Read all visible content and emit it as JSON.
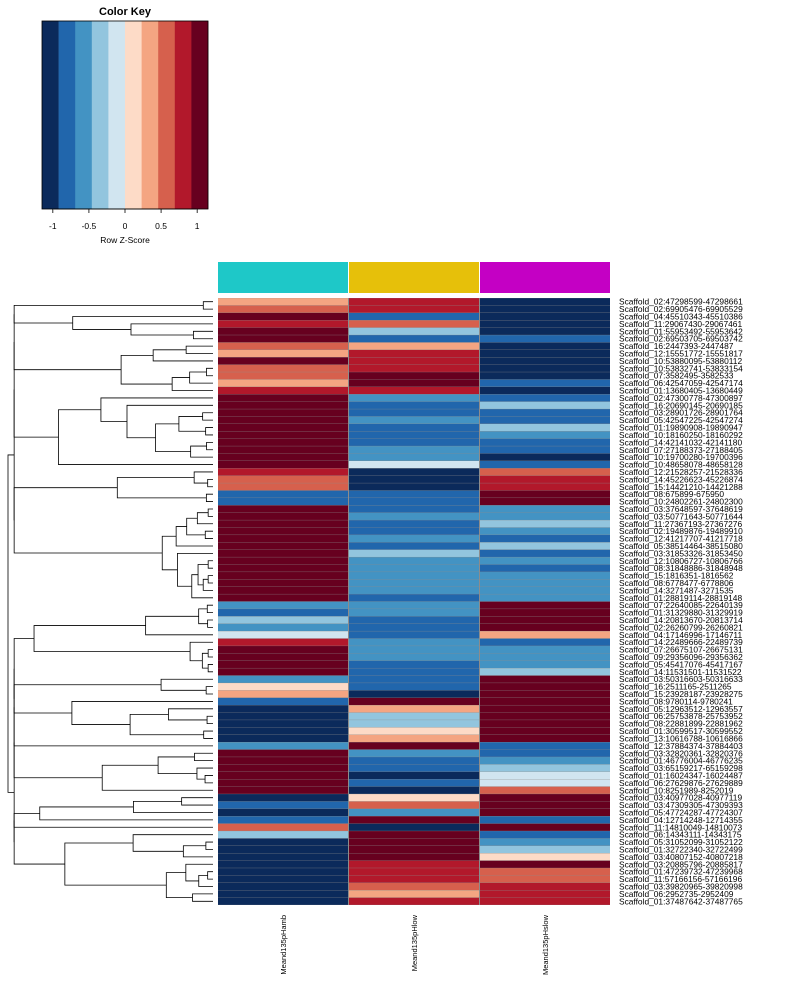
{
  "chart_data": {
    "type": "heatmap",
    "color_key": {
      "title": "Color Key",
      "xlabel": "Row Z-Score",
      "ticks": [
        "-1",
        "-0.5",
        "0",
        "0.5",
        "1"
      ],
      "tick_values": [
        -1,
        -0.5,
        0,
        0.5,
        1
      ],
      "range": [
        -1.15,
        1.15
      ],
      "colors": [
        "#0b2a5b",
        "#2166ac",
        "#4393c3",
        "#92c5de",
        "#d1e5f0",
        "#fddbc7",
        "#f4a582",
        "#d6604d",
        "#b2182b",
        "#67001f"
      ]
    },
    "columns": [
      {
        "label": "Meand135pHamb",
        "color": "#1ec8c8"
      },
      {
        "label": "Meand135pHlow",
        "color": "#e6c00a"
      },
      {
        "label": "Meand135pHslow",
        "color": "#c400c4"
      }
    ],
    "rows": [
      "Scaffold_02:47298599-47298661",
      "Scaffold_02:69905476-69905529",
      "Scaffold_04:45510343-45510386",
      "Scaffold_11:29067430-29067461",
      "Scaffold_01:55953492-55953642",
      "Scaffold_02:69503705-69503742",
      "Scaffold_16:2447393-2447487",
      "Scaffold_12:15551772-15551817",
      "Scaffold_10:53880095-53880112",
      "Scaffold_10:53832741-53833154",
      "Scaffold_07:3582495-3582533",
      "Scaffold_06:42547059-42547174",
      "Scaffold_01:13680405-13680449",
      "Scaffold_02:47300778-47300897",
      "Scaffold_16:20690145-20690185",
      "Scaffold_03:28901726-28901764",
      "Scaffold_05:42547225-42547274",
      "Scaffold_01:19890908-19890947",
      "Scaffold_10:18160250-18160292",
      "Scaffold_14:42141032-42141180",
      "Scaffold_07:27188373-27188405",
      "Scaffold_10:19700280-19700396",
      "Scaffold_10:48658078-48658128",
      "Scaffold_12:21528257-21528336",
      "Scaffold_14:45226623-45226874",
      "Scaffold_15:14421210-14421288",
      "Scaffold_08:675899-675950",
      "Scaffold_10:24802261-24802300",
      "Scaffold_03:37648597-37648619",
      "Scaffold_03:50771643-50771644",
      "Scaffold_11:27367193-27367276",
      "Scaffold_02:19489876-19489910",
      "Scaffold_12:41217707-41217718",
      "Scaffold_05:38514464-38515080",
      "Scaffold_03:31853326-31853450",
      "Scaffold_12:10806727-10806766",
      "Scaffold_08:31848886-31848948",
      "Scaffold_15:1816351-1816562",
      "Scaffold_08:6778477-6778806",
      "Scaffold_14:3271487-3271535",
      "Scaffold_01:28819114-28819148",
      "Scaffold_07:22640085-22640139",
      "Scaffold_01:31329880-31329919",
      "Scaffold_14:20813670-20813714",
      "Scaffold_02:26260799-26260821",
      "Scaffold_04:17146996-17146711",
      "Scaffold_14:22489666-22489739",
      "Scaffold_07:26675107-26675131",
      "Scaffold_09:29356096-29356362",
      "Scaffold_05:45417076-45417167",
      "Scaffold_14:11531501-11531522",
      "Scaffold_03:50316603-50316633",
      "Scaffold_16:2511165-2511265",
      "Scaffold_15:23928187-23928275",
      "Scaffold_08:9780114-9780241",
      "Scaffold_05:12963512-12963557",
      "Scaffold_06:25753878-25753952",
      "Scaffold_08:22881899-22881962",
      "Scaffold_01:30599517-30599552",
      "Scaffold_13:10616788-10616866",
      "Scaffold_12:37884374-37884403",
      "Scaffold_03:32820361-32820376",
      "Scaffold_01:46776004-46776235",
      "Scaffold_03:65159217-65159298",
      "Scaffold_01:16024347-16024487",
      "Scaffold_06:27629876-27629889",
      "Scaffold_10:8251989-8252019",
      "Scaffold_03:40977028-40977119",
      "Scaffold_03:47309305-47309393",
      "Scaffold_05:47724287-47724307",
      "Scaffold_04:12714248-12714355",
      "Scaffold_11:14810049-14810073",
      "Scaffold_06:14343111-14343175",
      "Scaffold_05:31052099-31052122",
      "Scaffold_01:32722340-32722499",
      "Scaffold_03:40807152-40807218",
      "Scaffold_03:20885796-20885817",
      "Scaffold_01:47239732-47239968",
      "Scaffold_11:57166156-57166196",
      "Scaffold_03:39820965-39820998",
      "Scaffold_06:2952735-2952409",
      "Scaffold_01:37487642-37487765"
    ],
    "values": [
      [
        0.35,
        0.85,
        -1.1
      ],
      [
        0.6,
        0.9,
        -1.1
      ],
      [
        1.1,
        -0.8,
        -1.1
      ],
      [
        0.75,
        0.65,
        -1.1
      ],
      [
        1.1,
        -0.4,
        -1.1
      ],
      [
        1.1,
        -0.75,
        -0.9
      ],
      [
        0.5,
        0.4,
        -1.1
      ],
      [
        0.45,
        0.9,
        -1.1
      ],
      [
        1.05,
        0.7,
        -1.1
      ],
      [
        0.6,
        0.85,
        -1.1
      ],
      [
        0.5,
        1.0,
        -1.1
      ],
      [
        0.3,
        1.1,
        -0.9
      ],
      [
        0.8,
        0.9,
        -1.1
      ],
      [
        1.1,
        -0.6,
        -0.8
      ],
      [
        1.1,
        -0.9,
        -0.3
      ],
      [
        1.1,
        -0.7,
        -0.7
      ],
      [
        1.1,
        -0.5,
        -0.9
      ],
      [
        1.1,
        -0.9,
        -0.4
      ],
      [
        1.1,
        -0.85,
        -0.6
      ],
      [
        1.1,
        -0.7,
        -0.7
      ],
      [
        1.1,
        -0.55,
        -0.8
      ],
      [
        1.1,
        -0.6,
        -1.1
      ],
      [
        1.1,
        -0.1,
        -0.9
      ],
      [
        0.7,
        -1.1,
        0.55
      ],
      [
        0.55,
        -1.1,
        0.75
      ],
      [
        0.5,
        -1.1,
        0.85
      ],
      [
        -0.7,
        -0.9,
        1.1
      ],
      [
        -0.8,
        -0.75,
        1.1
      ],
      [
        1.1,
        -0.7,
        -0.55
      ],
      [
        1.1,
        -0.65,
        -0.5
      ],
      [
        1.1,
        -0.85,
        -0.3
      ],
      [
        1.1,
        -0.75,
        -0.6
      ],
      [
        1.1,
        -0.55,
        -0.7
      ],
      [
        1.1,
        -0.8,
        -0.4
      ],
      [
        1.1,
        -0.35,
        -0.75
      ],
      [
        1.1,
        -0.6,
        -0.65
      ],
      [
        1.1,
        -0.55,
        -0.7
      ],
      [
        1.1,
        -0.6,
        -0.6
      ],
      [
        1.1,
        -0.65,
        -0.55
      ],
      [
        1.1,
        -0.55,
        -0.6
      ],
      [
        1.1,
        -0.7,
        -0.5
      ],
      [
        -0.6,
        -0.5,
        1.1
      ],
      [
        -0.7,
        -0.6,
        1.1
      ],
      [
        -0.45,
        -0.75,
        1.1
      ],
      [
        -0.55,
        -0.7,
        1.1
      ],
      [
        -0.1,
        -0.9,
        0.3
      ],
      [
        0.9,
        -0.6,
        -0.7
      ],
      [
        1.1,
        -0.65,
        -0.6
      ],
      [
        1.1,
        -0.6,
        -0.55
      ],
      [
        1.1,
        -0.7,
        -0.5
      ],
      [
        1.1,
        -0.75,
        -0.45
      ],
      [
        -0.5,
        -0.8,
        1.1
      ],
      [
        0.2,
        -0.9,
        1.0
      ],
      [
        0.35,
        -1.0,
        0.95
      ],
      [
        -0.9,
        1.05,
        1.05
      ],
      [
        -1.1,
        0.3,
        1.1
      ],
      [
        -1.1,
        -0.3,
        1.1
      ],
      [
        -1.1,
        -0.45,
        1.1
      ],
      [
        -1.1,
        0.2,
        1.1
      ],
      [
        -1.1,
        0.45,
        1.1
      ],
      [
        -0.6,
        1.1,
        -0.7
      ],
      [
        1.1,
        -0.6,
        -0.9
      ],
      [
        1.1,
        -0.75,
        -0.55
      ],
      [
        1.1,
        -0.85,
        -0.3
      ],
      [
        1.1,
        -1.1,
        -0.1
      ],
      [
        1.1,
        -0.9,
        -0.2
      ],
      [
        1.1,
        -0.95,
        0.6
      ],
      [
        -1.1,
        0.1,
        1.1
      ],
      [
        -0.7,
        0.5,
        1.1
      ],
      [
        -1.1,
        -0.6,
        1.1
      ],
      [
        -0.8,
        0.95,
        -0.9
      ],
      [
        0.6,
        -1.1,
        1.1
      ],
      [
        -0.3,
        1.1,
        -0.7
      ],
      [
        -1.1,
        1.1,
        -0.5
      ],
      [
        -1.1,
        1.1,
        -0.3
      ],
      [
        -1.1,
        1.1,
        0.0
      ],
      [
        -1.1,
        0.7,
        0.95
      ],
      [
        -1.1,
        0.9,
        0.6
      ],
      [
        -1.1,
        0.8,
        0.65
      ],
      [
        -1.1,
        0.65,
        0.75
      ],
      [
        -1.1,
        0.4,
        0.9
      ],
      [
        -1.1,
        0.75,
        0.7
      ]
    ]
  }
}
